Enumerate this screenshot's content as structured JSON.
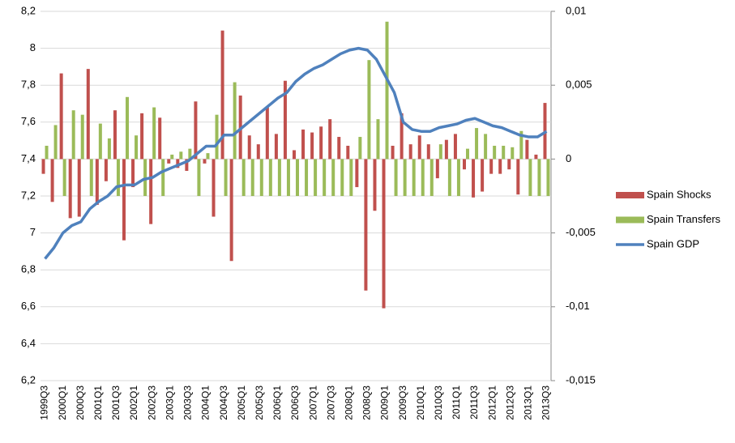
{
  "chart_data": {
    "type": "bar-line",
    "categories": [
      "1999Q3",
      null,
      "2000Q1",
      null,
      "2000Q3",
      null,
      "2001Q1",
      null,
      "2001Q3",
      null,
      "2002Q1",
      null,
      "2002Q3",
      null,
      "2003Q1",
      null,
      "2003Q3",
      null,
      "2004Q1",
      null,
      "2004Q3",
      null,
      "2005Q1",
      null,
      "2005Q3",
      null,
      "2006Q1",
      null,
      "2006Q3",
      null,
      "2007Q1",
      null,
      "2007Q3",
      null,
      "2008Q1",
      null,
      "2008Q3",
      null,
      "2009Q1",
      null,
      "2009Q3",
      null,
      "2010Q1",
      null,
      "2010Q3",
      null,
      "2011Q1",
      null,
      "2011Q3",
      null,
      "2012Q1",
      null,
      "2012Q3",
      null,
      "2013Q1",
      null,
      "2013Q3"
    ],
    "series": [
      {
        "name": "Spain Shocks",
        "type": "bar",
        "axis": "y2",
        "color": "#c0504d",
        "values": [
          -0.001,
          -0.0029,
          0.0058,
          -0.004,
          -0.0039,
          0.0061,
          -0.0031,
          -0.0015,
          0.0033,
          -0.0055,
          -0.0019,
          0.0031,
          -0.0044,
          0.0028,
          -0.0003,
          -0.0006,
          -0.0008,
          0.0039,
          -0.0003,
          -0.0039,
          0.0087,
          -0.0069,
          0.0043,
          0.0016,
          0.001,
          0.0035,
          0.0017,
          0.0053,
          0.0006,
          0.002,
          0.0018,
          0.0022,
          0.0027,
          0.0015,
          0.0009,
          -0.0019,
          -0.0089,
          -0.0035,
          -0.0101,
          0.0009,
          0.0031,
          0.001,
          0.0016,
          0.001,
          -0.0013,
          0.0013,
          0.0017,
          -0.0007,
          -0.0026,
          -0.0022,
          -0.001,
          -0.001,
          -0.0007,
          -0.0024,
          0.0013,
          0.0003,
          0.0038
        ]
      },
      {
        "name": "Spain Transfers",
        "type": "bar",
        "axis": "y2",
        "color": "#9bbb59",
        "values": [
          0.0009,
          0.0023,
          -0.0025,
          0.0033,
          0.003,
          -0.0025,
          0.0024,
          0.0014,
          -0.0025,
          0.0042,
          0.0016,
          -0.0025,
          0.0035,
          -0.0025,
          0.0003,
          0.0005,
          0.0007,
          -0.0025,
          0.0004,
          0.003,
          -0.0025,
          0.0052,
          -0.0025,
          -0.0025,
          -0.0025,
          -0.0025,
          -0.0025,
          -0.0025,
          -0.0025,
          -0.0025,
          -0.0025,
          -0.0025,
          -0.0025,
          -0.0025,
          -0.0025,
          0.0015,
          0.0067,
          0.0027,
          0.0093,
          -0.0025,
          -0.0025,
          -0.0025,
          -0.0025,
          -0.0025,
          0.001,
          -0.0025,
          -0.0025,
          0.0007,
          0.0021,
          0.0017,
          0.0009,
          0.0009,
          0.0008,
          0.0019,
          -0.0025,
          -0.0025,
          -0.0025
        ]
      },
      {
        "name": "Spain GDP",
        "type": "line",
        "axis": "y",
        "color": "#4f81bd",
        "values": [
          6.86,
          6.92,
          7.0,
          7.04,
          7.06,
          7.13,
          7.17,
          7.2,
          7.25,
          7.26,
          7.26,
          7.29,
          7.3,
          7.33,
          7.35,
          7.37,
          7.39,
          7.43,
          7.47,
          7.47,
          7.53,
          7.53,
          7.57,
          7.61,
          7.65,
          7.69,
          7.73,
          7.76,
          7.82,
          7.86,
          7.89,
          7.91,
          7.94,
          7.97,
          7.99,
          8.0,
          7.99,
          7.94,
          7.85,
          7.76,
          7.6,
          7.56,
          7.55,
          7.55,
          7.57,
          7.58,
          7.59,
          7.61,
          7.62,
          7.6,
          7.58,
          7.57,
          7.55,
          7.53,
          7.52,
          7.52,
          7.55
        ]
      }
    ],
    "ylim": [
      6.2,
      8.2
    ],
    "yticks": [
      {
        "value": 6.2,
        "label": "6,2"
      },
      {
        "value": 6.4,
        "label": "6,4"
      },
      {
        "value": 6.6,
        "label": "6,6"
      },
      {
        "value": 6.8,
        "label": "6,8"
      },
      7,
      {
        "value": 7.2,
        "label": "7,2"
      },
      {
        "value": 7.4,
        "label": "7,4"
      },
      {
        "value": 7.6,
        "label": "7,6"
      },
      {
        "value": 7.8,
        "label": "7,8"
      },
      8,
      {
        "value": 8.2,
        "label": "8,2"
      }
    ],
    "y2lim": [
      -0.015,
      0.01
    ],
    "y2ticks": [
      {
        "value": -0.015,
        "label": "-0,015"
      },
      {
        "value": -0.01,
        "label": "-0,01"
      },
      {
        "value": -0.005,
        "label": "-0,005"
      },
      0,
      {
        "value": 0.005,
        "label": "0,005"
      },
      {
        "value": 0.01,
        "label": "0,01"
      }
    ],
    "grid": true,
    "legend": "right"
  }
}
